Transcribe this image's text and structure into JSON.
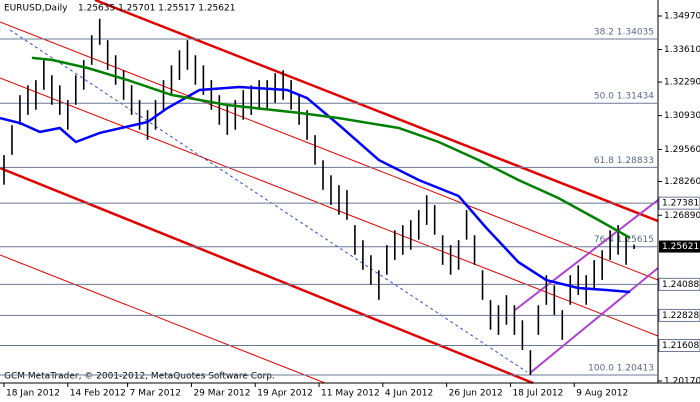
{
  "chart_data": {
    "type": "ohlc",
    "title": "EURUSD,Daily",
    "quote": "1.25635 1.25701 1.25517 1.25621",
    "footer": "GCM MetaTrader, © 2001-2012, MetaQuotes Software Corp.",
    "color": "#000000",
    "xlim": [
      -1,
      164
    ],
    "ylim": [
      1.20088,
      1.35619
    ],
    "xticks": [
      {
        "value": 0,
        "label": "18 Jan 2012"
      },
      {
        "value": 16,
        "label": "14 Feb 2012"
      },
      {
        "value": 31,
        "label": "7 Mar 2012"
      },
      {
        "value": 47,
        "label": "29 Mar 2012"
      },
      {
        "value": 63,
        "label": "19 Apr 2012"
      },
      {
        "value": 79,
        "label": "11 May 2012"
      },
      {
        "value": 95,
        "label": "4 Jun 2012"
      },
      {
        "value": 111,
        "label": "26 Jun 2012"
      },
      {
        "value": 127,
        "label": "18 Jul 2012"
      },
      {
        "value": 143,
        "label": "9 Aug 2012"
      }
    ],
    "yticks": [
      {
        "value": 1.3497,
        "label": "1.34970"
      },
      {
        "value": 1.3361,
        "label": "1.33610"
      },
      {
        "value": 1.3229,
        "label": "1.32290"
      },
      {
        "value": 1.3093,
        "label": "1.30930"
      },
      {
        "value": 1.2956,
        "label": "1.29560"
      },
      {
        "value": 1.2826,
        "label": "1.28260"
      },
      {
        "value": 1.2689,
        "label": "1.26890"
      },
      {
        "value": 1.2017,
        "label": "1.20170"
      }
    ],
    "levels": [
      {
        "value": 1.27381,
        "label": "1.27381"
      },
      {
        "value": 1.24088,
        "label": "1.24088"
      },
      {
        "value": 1.22828,
        "label": "1.22828"
      },
      {
        "value": 1.21608,
        "label": "1.21608"
      }
    ],
    "price": {
      "value": 1.25621,
      "label": "1.25621"
    },
    "fibo": [
      {
        "value": 1.34035,
        "label": "38.2 1.34035"
      },
      {
        "value": 1.31434,
        "label": "50.0 1.31434"
      },
      {
        "value": 1.28833,
        "label": "61.8 1.28833"
      },
      {
        "value": 1.25615,
        "label": "76.4 1.25615"
      },
      {
        "value": 1.20413,
        "label": "100.0 1.20413"
      }
    ],
    "x": [
      0,
      2,
      4,
      6,
      8,
      10,
      12,
      14,
      16,
      18,
      20,
      22,
      24,
      26,
      28,
      30,
      32,
      34,
      36,
      38,
      40,
      42,
      44,
      46,
      48,
      50,
      52,
      54,
      56,
      58,
      60,
      62,
      64,
      66,
      68,
      70,
      72,
      74,
      76,
      78,
      80,
      82,
      84,
      86,
      88,
      90,
      92,
      94,
      96,
      98,
      100,
      102,
      104,
      106,
      108,
      110,
      112,
      114,
      116,
      118,
      120,
      122,
      124,
      126,
      128,
      130,
      132,
      134,
      136,
      138,
      140,
      142,
      144,
      146,
      148,
      150,
      152,
      154,
      156,
      158
    ],
    "high": [
      1.2933,
      1.3054,
      1.3176,
      1.3216,
      1.3237,
      1.3318,
      1.3257,
      1.3216,
      1.3156,
      1.3257,
      1.3318,
      1.3419,
      1.3486,
      1.3399,
      1.3338,
      1.3277,
      1.3216,
      1.3156,
      1.3115,
      1.3156,
      1.3237,
      1.3297,
      1.3358,
      1.3399,
      1.3338,
      1.3297,
      1.3237,
      1.3176,
      1.3135,
      1.3156,
      1.3196,
      1.3216,
      1.3237,
      1.3237,
      1.3265,
      1.3277,
      1.3237,
      1.3176,
      1.3115,
      1.3014,
      1.2912,
      1.2851,
      1.2811,
      1.2791,
      1.2649,
      1.2588,
      1.2527,
      1.2466,
      1.2568,
      1.2628,
      1.2649,
      1.2669,
      1.271,
      1.277,
      1.273,
      1.2608,
      1.2568,
      1.2588,
      1.271,
      1.2608,
      1.2466,
      1.2345,
      1.2324,
      1.2365,
      1.2324,
      1.2263,
      1.2142,
      1.2324,
      1.2446,
      1.2405,
      1.2304,
      1.2446,
      1.2486,
      1.2446,
      1.2507,
      1.2547,
      1.2628,
      1.2649,
      1.2608,
      1.257
    ],
    "low": [
      1.2813,
      1.2934,
      1.3056,
      1.3096,
      1.3117,
      1.3198,
      1.3137,
      1.3096,
      1.3036,
      1.3137,
      1.3198,
      1.3299,
      1.338,
      1.3279,
      1.3218,
      1.3157,
      1.3096,
      1.3036,
      1.2995,
      1.3036,
      1.3117,
      1.3177,
      1.3238,
      1.3279,
      1.3218,
      1.3177,
      1.3117,
      1.3056,
      1.3015,
      1.3036,
      1.3076,
      1.3096,
      1.3117,
      1.3117,
      1.3145,
      1.3157,
      1.3117,
      1.3056,
      1.2995,
      1.2894,
      1.2792,
      1.2731,
      1.2691,
      1.2671,
      1.2529,
      1.2468,
      1.2407,
      1.2346,
      1.2448,
      1.2508,
      1.2529,
      1.2549,
      1.259,
      1.265,
      1.261,
      1.2488,
      1.2448,
      1.2468,
      1.259,
      1.2488,
      1.2346,
      1.2225,
      1.2204,
      1.2245,
      1.2204,
      1.2143,
      1.2041,
      1.2204,
      1.2326,
      1.2285,
      1.2184,
      1.2326,
      1.2366,
      1.2326,
      1.2387,
      1.2427,
      1.2508,
      1.2529,
      1.2488,
      1.2552
    ],
    "series": [
      {
        "color": "#0000ff",
        "x": [
          -1,
          4,
          9,
          14,
          18,
          24,
          36,
          41,
          49,
          59,
          71,
          76,
          84,
          94,
          104,
          114,
          121,
          129,
          136,
          144,
          151,
          157
        ],
        "values": [
          1.3083,
          1.3063,
          1.3027,
          1.3043,
          1.2986,
          1.3023,
          1.3067,
          1.3124,
          1.3197,
          1.3209,
          1.3197,
          1.3164,
          1.3055,
          1.2913,
          1.2832,
          1.2767,
          1.2637,
          1.2499,
          1.2426,
          1.2394,
          1.2386,
          1.2378
        ]
      },
      {
        "color": "#008000",
        "x": [
          7,
          12,
          21,
          31,
          42,
          56,
          74,
          84,
          99,
          109,
          119,
          129,
          139,
          149,
          157
        ],
        "values": [
          1.3327,
          1.3319,
          1.3286,
          1.3237,
          1.3177,
          1.3136,
          1.3104,
          1.3083,
          1.3043,
          1.2986,
          1.2913,
          1.2832,
          1.2759,
          1.267,
          1.2597
        ]
      }
    ]
  }
}
